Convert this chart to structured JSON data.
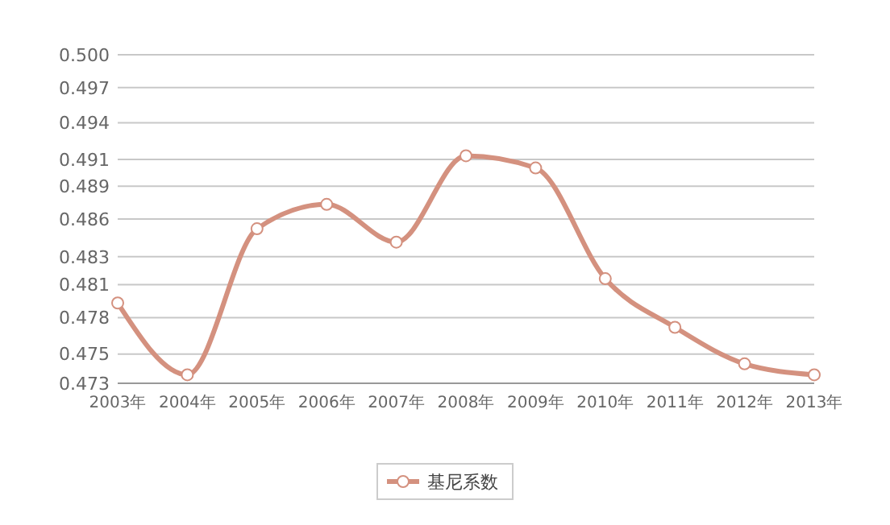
{
  "chart_data": {
    "type": "line",
    "categories": [
      "2003年",
      "2004年",
      "2005年",
      "2006年",
      "2007年",
      "2008年",
      "2009年",
      "2010年",
      "2011年",
      "2012年",
      "2013年"
    ],
    "series": [
      {
        "name": "基尼系数",
        "color": "#d4917f",
        "values": [
          0.4796,
          0.4737,
          0.4857,
          0.4877,
          0.4846,
          0.4917,
          0.4907,
          0.4816,
          0.4776,
          0.4746,
          0.4737
        ]
      }
    ],
    "ylim": [
      0.473,
      0.5
    ],
    "yticks": [
      0.473,
      {
        "value": 0.4754,
        "label": "0.475"
      },
      {
        "value": 0.4784,
        "label": "0.478"
      },
      {
        "value": 0.4811,
        "label": "0.481"
      },
      {
        "value": 0.4834,
        "label": "0.483"
      },
      {
        "value": 0.4865,
        "label": "0.486"
      },
      {
        "value": 0.4892,
        "label": "0.489"
      },
      {
        "value": 0.4914,
        "label": "0.491"
      },
      {
        "value": 0.4944,
        "label": "0.494"
      },
      {
        "value": 0.4973,
        "label": "0.497"
      },
      {
        "value": 0.5,
        "label": "0.500"
      }
    ],
    "grid": "y",
    "legend": "bottom",
    "marker": "circle",
    "line_style": "solid"
  }
}
